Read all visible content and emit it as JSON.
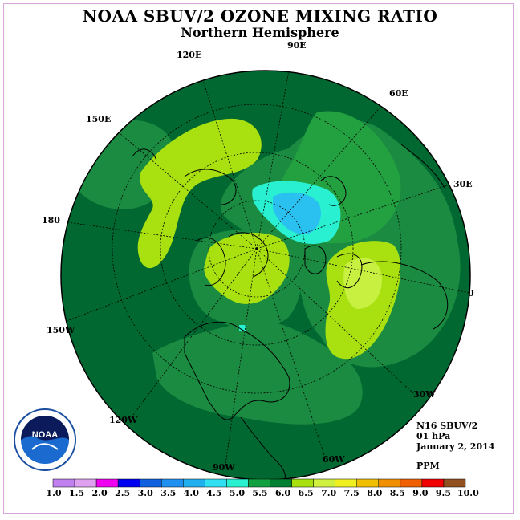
{
  "header": {
    "title": "NOAA SBUV/2 OZONE MIXING RATIO",
    "subtitle": "Northern Hemisphere"
  },
  "map": {
    "projection": "polar stereographic, north pole",
    "longitude_labels": [
      "90E",
      "60E",
      "30E",
      "0",
      "30W",
      "60W",
      "90W",
      "120W",
      "150W",
      "180",
      "150E",
      "120E"
    ],
    "colors": {
      "background": "#006830",
      "band_5_5": "#1a8b40",
      "band_6_0": "#23a040",
      "band_6_5": "#a8e010",
      "band_7_0": "#c8f040",
      "band_4_5": "#28f0d0",
      "band_4_0": "#2ac0f0"
    }
  },
  "info": {
    "satellite": "N16 SBUV/2",
    "level": "01 hPa",
    "date": "January 2, 2014",
    "units": "PPM"
  },
  "colorbar": {
    "labels": [
      "1.0",
      "1.5",
      "2.0",
      "2.5",
      "3.0",
      "3.5",
      "4.0",
      "4.5",
      "5.0",
      "5.5",
      "6.0",
      "6.5",
      "7.0",
      "7.5",
      "8.0",
      "8.5",
      "9.0",
      "9.5",
      "10.0"
    ],
    "colors": [
      "#c080f0",
      "#e0a0f0",
      "#f000f0",
      "#0000f0",
      "#1060e0",
      "#2090f0",
      "#20b0f0",
      "#30e0f0",
      "#28f0d0",
      "#10a040",
      "#008030",
      "#a8e010",
      "#d0f040",
      "#f0f020",
      "#f0c000",
      "#f09000",
      "#f06000",
      "#f00000",
      "#905020"
    ]
  },
  "logo": {
    "text": "NOAA"
  }
}
